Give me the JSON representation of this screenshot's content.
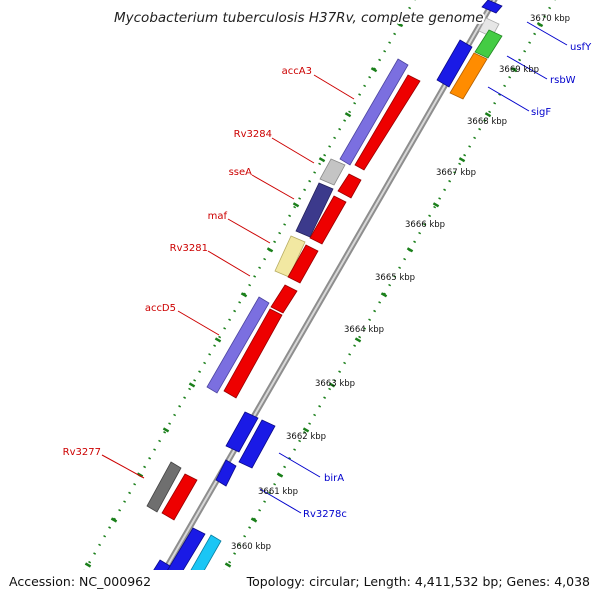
{
  "title": "Mycobacterium tuberculosis H37Rv, complete genome",
  "accession": "Accession: NC_000962",
  "summary": "Topology: circular; Length: 4,411,532 bp; Genes: 4,038",
  "colors": {
    "red_label": "#cc0000",
    "blue_label": "#0000cc",
    "backbone": "#999999",
    "tick_green": "#1a7f1a"
  },
  "kbp_ticks": [
    {
      "label": "3670 kbp",
      "kbp": 3670
    },
    {
      "label": "3669 kbp",
      "kbp": 3669
    },
    {
      "label": "3668 kbp",
      "kbp": 3668
    },
    {
      "label": "3667 kbp",
      "kbp": 3667
    },
    {
      "label": "3666 kbp",
      "kbp": 3666
    },
    {
      "label": "3665 kbp",
      "kbp": 3665
    },
    {
      "label": "3664 kbp",
      "kbp": 3664
    },
    {
      "label": "3663 kbp",
      "kbp": 3663
    },
    {
      "label": "3662 kbp",
      "kbp": 3662
    },
    {
      "label": "3661 kbp",
      "kbp": 3661
    },
    {
      "label": "3660 kbp",
      "kbp": 3660
    }
  ],
  "reverse_labels": [
    {
      "name": "accA3"
    },
    {
      "name": "Rv3284"
    },
    {
      "name": "sseA"
    },
    {
      "name": "maf"
    },
    {
      "name": "Rv3281"
    },
    {
      "name": "accD5"
    },
    {
      "name": "Rv3277"
    }
  ],
  "forward_labels": [
    {
      "name": "usfY"
    },
    {
      "name": "rsbW"
    },
    {
      "name": "sigF"
    },
    {
      "name": "birA"
    },
    {
      "name": "Rv3278c"
    }
  ]
}
